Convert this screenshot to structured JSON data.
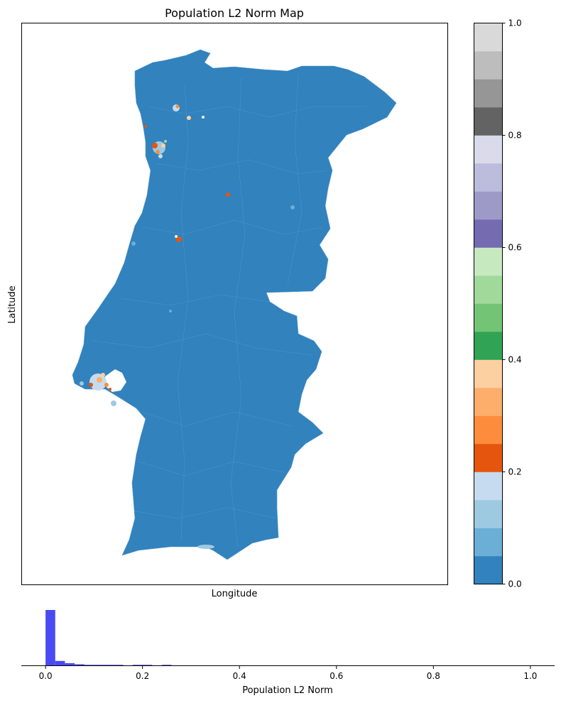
{
  "map": {
    "title": "Population L2 Norm Map",
    "xlabel": "Longitude",
    "ylabel": "Latitude",
    "base_color": "#3182bd",
    "hotspot_colors": [
      "#e6550d",
      "#fd8d3c",
      "#fdae6b",
      "#fdd0a2",
      "#9ecae1",
      "#c6dbef",
      "#a1d99b"
    ]
  },
  "colorbar": {
    "range": [
      0,
      1
    ],
    "ticks": [
      "0.0",
      "0.2",
      "0.4",
      "0.6",
      "0.8",
      "1.0"
    ],
    "colors": [
      "#3182bd",
      "#6baed6",
      "#9ecae1",
      "#c6dbef",
      "#e6550d",
      "#fd8d3c",
      "#fdae6b",
      "#fdd0a2",
      "#31a354",
      "#74c476",
      "#a1d99b",
      "#c7e9c0",
      "#756bb1",
      "#9e9ac8",
      "#bcbddc",
      "#dadaeb",
      "#636363",
      "#969696",
      "#bdbdbd",
      "#d9d9d9"
    ]
  },
  "chart_data": {
    "type": "bar",
    "title": "",
    "xlabel": "Population L2 Norm",
    "ylabel": "",
    "xlim": [
      -0.05,
      1.05
    ],
    "x_ticks": [
      "0.0",
      "0.2",
      "0.4",
      "0.6",
      "0.8",
      "1.0"
    ],
    "bin_width": 0.02,
    "bin_starts": [
      0.0,
      0.02,
      0.04,
      0.06,
      0.08,
      0.1,
      0.12,
      0.14,
      0.18,
      0.2,
      0.24
    ],
    "counts": [
      100,
      8,
      4,
      2,
      1,
      1,
      1,
      1,
      1,
      1,
      1
    ],
    "bar_color": "#4a4af4",
    "grid": false
  }
}
